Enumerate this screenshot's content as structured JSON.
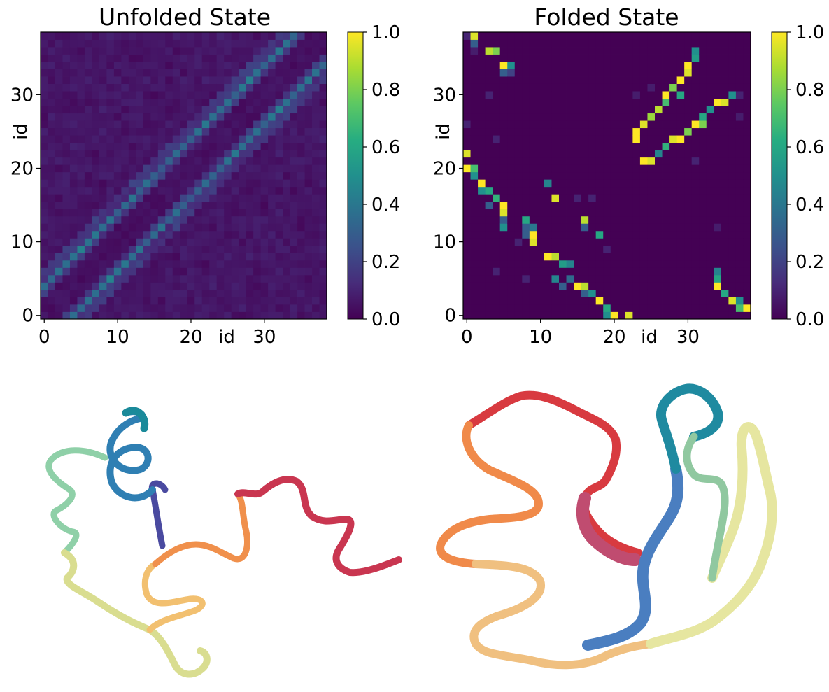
{
  "chart_data": [
    {
      "type": "heatmap",
      "title": "Unfolded State",
      "xlabel": "id",
      "ylabel": "id",
      "n": 39,
      "xticks": [
        0,
        10,
        20,
        30
      ],
      "yticks": [
        0,
        10,
        20,
        30
      ],
      "colorbar": {
        "min": 0.0,
        "max": 1.0,
        "ticks": [
          "0.0",
          "0.2",
          "0.4",
          "0.6",
          "0.8",
          "1.0"
        ],
        "colormap": "viridis"
      },
      "pattern": {
        "description_values": "symmetric contact map with two bands at offset 4 (values ~0.25-0.45) and faint background (~0.03-0.12)",
        "band_offset": 4,
        "band_value_range": [
          0.22,
          0.48
        ],
        "near_band_offsets": [
          3,
          5,
          6
        ],
        "near_band_value_range": [
          0.1,
          0.22
        ],
        "background_range": [
          0.02,
          0.1
        ]
      }
    },
    {
      "type": "heatmap",
      "title": "Folded State",
      "xlabel": "id",
      "ylabel": "id",
      "n": 39,
      "xticks": [
        0,
        10,
        20,
        30
      ],
      "yticks": [
        0,
        10,
        20,
        30
      ],
      "colorbar": {
        "min": 0.0,
        "max": 1.0,
        "ticks": [
          "0.0",
          "0.2",
          "0.4",
          "0.6",
          "0.8",
          "1.0"
        ],
        "colormap": "viridis"
      },
      "cells": [
        [
          1,
          38,
          0.95
        ],
        [
          3,
          36,
          0.9
        ],
        [
          4,
          36,
          0.8
        ],
        [
          5,
          34,
          1.0
        ],
        [
          6,
          34,
          0.5
        ],
        [
          6,
          33,
          0.2
        ],
        [
          5,
          33,
          0.3
        ],
        [
          1,
          37,
          0.3
        ],
        [
          0,
          38,
          0.1
        ],
        [
          23,
          25,
          1.0
        ],
        [
          23,
          24,
          1.0
        ],
        [
          24,
          26,
          0.95
        ],
        [
          25,
          27,
          0.85
        ],
        [
          26,
          28,
          0.9
        ],
        [
          27,
          30,
          1.0
        ],
        [
          28,
          31,
          0.8
        ],
        [
          29,
          32,
          1.0
        ],
        [
          30,
          33,
          0.95
        ],
        [
          30,
          34,
          1.0
        ],
        [
          31,
          35,
          0.55
        ],
        [
          31,
          36,
          0.5
        ],
        [
          29,
          30,
          0.6
        ],
        [
          27,
          29,
          0.7
        ],
        [
          24,
          21,
          1.0
        ],
        [
          25,
          21,
          0.95
        ],
        [
          26,
          22,
          0.45
        ],
        [
          27,
          23,
          0.65
        ],
        [
          28,
          24,
          0.95
        ],
        [
          29,
          24,
          1.0
        ],
        [
          30,
          25,
          0.8
        ],
        [
          31,
          26,
          1.0
        ],
        [
          32,
          26,
          0.8
        ],
        [
          32,
          27,
          0.6
        ],
        [
          33,
          28,
          0.5
        ],
        [
          34,
          29,
          1.0
        ],
        [
          35,
          29,
          0.95
        ],
        [
          36,
          30,
          0.5
        ],
        [
          37,
          30,
          0.1
        ],
        [
          0,
          22,
          0.95
        ],
        [
          0,
          20,
          1.0
        ],
        [
          1,
          20,
          0.7
        ],
        [
          1,
          19,
          0.5
        ],
        [
          2,
          18,
          1.0
        ],
        [
          2,
          17,
          0.5
        ],
        [
          3,
          17,
          0.6
        ],
        [
          4,
          16,
          0.65
        ],
        [
          5,
          15,
          1.0
        ],
        [
          5,
          14,
          0.95
        ],
        [
          5,
          13,
          0.3
        ],
        [
          5,
          12,
          0.5
        ],
        [
          3,
          15,
          0.3
        ],
        [
          8,
          13,
          0.6
        ],
        [
          8,
          12,
          0.3
        ],
        [
          9,
          12,
          0.4
        ],
        [
          9,
          11,
          1.0
        ],
        [
          9,
          10,
          0.95
        ],
        [
          8,
          11,
          0.3
        ],
        [
          11,
          18,
          0.45
        ],
        [
          12,
          16,
          0.95
        ],
        [
          16,
          13,
          0.9
        ],
        [
          16,
          12,
          0.3
        ],
        [
          18,
          11,
          0.6
        ],
        [
          11,
          8,
          1.0
        ],
        [
          12,
          8,
          0.9
        ],
        [
          13,
          7,
          0.55
        ],
        [
          14,
          7,
          0.45
        ],
        [
          14,
          5,
          0.35
        ],
        [
          15,
          4,
          1.0
        ],
        [
          16,
          4,
          0.9
        ],
        [
          17,
          3,
          0.5
        ],
        [
          18,
          2,
          1.0
        ],
        [
          19,
          1,
          0.6
        ],
        [
          19,
          0,
          0.5
        ],
        [
          20,
          0,
          1.0
        ],
        [
          22,
          0,
          0.95
        ],
        [
          12,
          5,
          0.45
        ],
        [
          13,
          4,
          0.3
        ],
        [
          16,
          3,
          0.3
        ],
        [
          34,
          6,
          0.45
        ],
        [
          34,
          5,
          0.6
        ],
        [
          34,
          4,
          1.0
        ],
        [
          35,
          3,
          0.6
        ],
        [
          36,
          2,
          0.95
        ],
        [
          37,
          2,
          0.5
        ],
        [
          37,
          1,
          0.7
        ],
        [
          38,
          1,
          1.0
        ]
      ],
      "faint_cells": [
        [
          1,
          36,
          0.08
        ],
        [
          4,
          24,
          0.1
        ],
        [
          4,
          6,
          0.1
        ],
        [
          7,
          10,
          0.1
        ],
        [
          15,
          16,
          0.1
        ],
        [
          17,
          16,
          0.1
        ],
        [
          19,
          9,
          0.1
        ],
        [
          23,
          30,
          0.08
        ],
        [
          25,
          31,
          0.08
        ],
        [
          31,
          21,
          0.1
        ],
        [
          34,
          12,
          0.08
        ],
        [
          37,
          27,
          0.08
        ],
        [
          3,
          30,
          0.1
        ],
        [
          0,
          26,
          0.1
        ],
        [
          8,
          5,
          0.1
        ]
      ],
      "background": 0.0
    }
  ],
  "images": [
    {
      "label": "unfolded-structure-ribbon"
    },
    {
      "label": "folded-structure-ribbon"
    }
  ]
}
